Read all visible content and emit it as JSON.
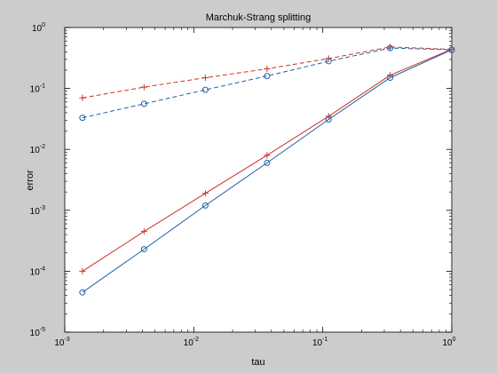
{
  "chart_data": {
    "type": "line",
    "title": "Marchuk-Strang splitting",
    "xlabel": "tau",
    "ylabel": "error",
    "xscale": "log",
    "yscale": "log",
    "xlim": [
      0.001,
      1
    ],
    "ylim": [
      1e-05,
      1
    ],
    "x_ticks": [
      {
        "base": "10",
        "exp": "-3"
      },
      {
        "base": "10",
        "exp": "-2"
      },
      {
        "base": "10",
        "exp": "-1"
      },
      {
        "base": "10",
        "exp": "0"
      }
    ],
    "y_ticks": [
      {
        "base": "10",
        "exp": "-5"
      },
      {
        "base": "10",
        "exp": "-4"
      },
      {
        "base": "10",
        "exp": "-3"
      },
      {
        "base": "10",
        "exp": "-2"
      },
      {
        "base": "10",
        "exp": "-1"
      },
      {
        "base": "10",
        "exp": "0"
      }
    ],
    "grid": false,
    "legend": "none",
    "x": [
      0.00137,
      0.00412,
      0.0123,
      0.037,
      0.111,
      0.333,
      1.0
    ],
    "series": [
      {
        "color": "#cc3322",
        "dash": "dashed",
        "marker": "plus",
        "values": [
          0.07,
          0.105,
          0.15,
          0.21,
          0.31,
          0.48,
          0.44
        ]
      },
      {
        "color": "#1f5fa8",
        "dash": "dashed",
        "marker": "circle",
        "values": [
          0.033,
          0.056,
          0.095,
          0.16,
          0.28,
          0.46,
          0.43
        ]
      },
      {
        "color": "#cc3322",
        "dash": "solid",
        "marker": "plus",
        "values": [
          0.0001,
          0.00045,
          0.0019,
          0.008,
          0.035,
          0.165,
          0.44
        ]
      },
      {
        "color": "#1f5fa8",
        "dash": "solid",
        "marker": "circle",
        "values": [
          4.5e-05,
          0.00023,
          0.0012,
          0.006,
          0.031,
          0.15,
          0.43
        ]
      }
    ]
  }
}
